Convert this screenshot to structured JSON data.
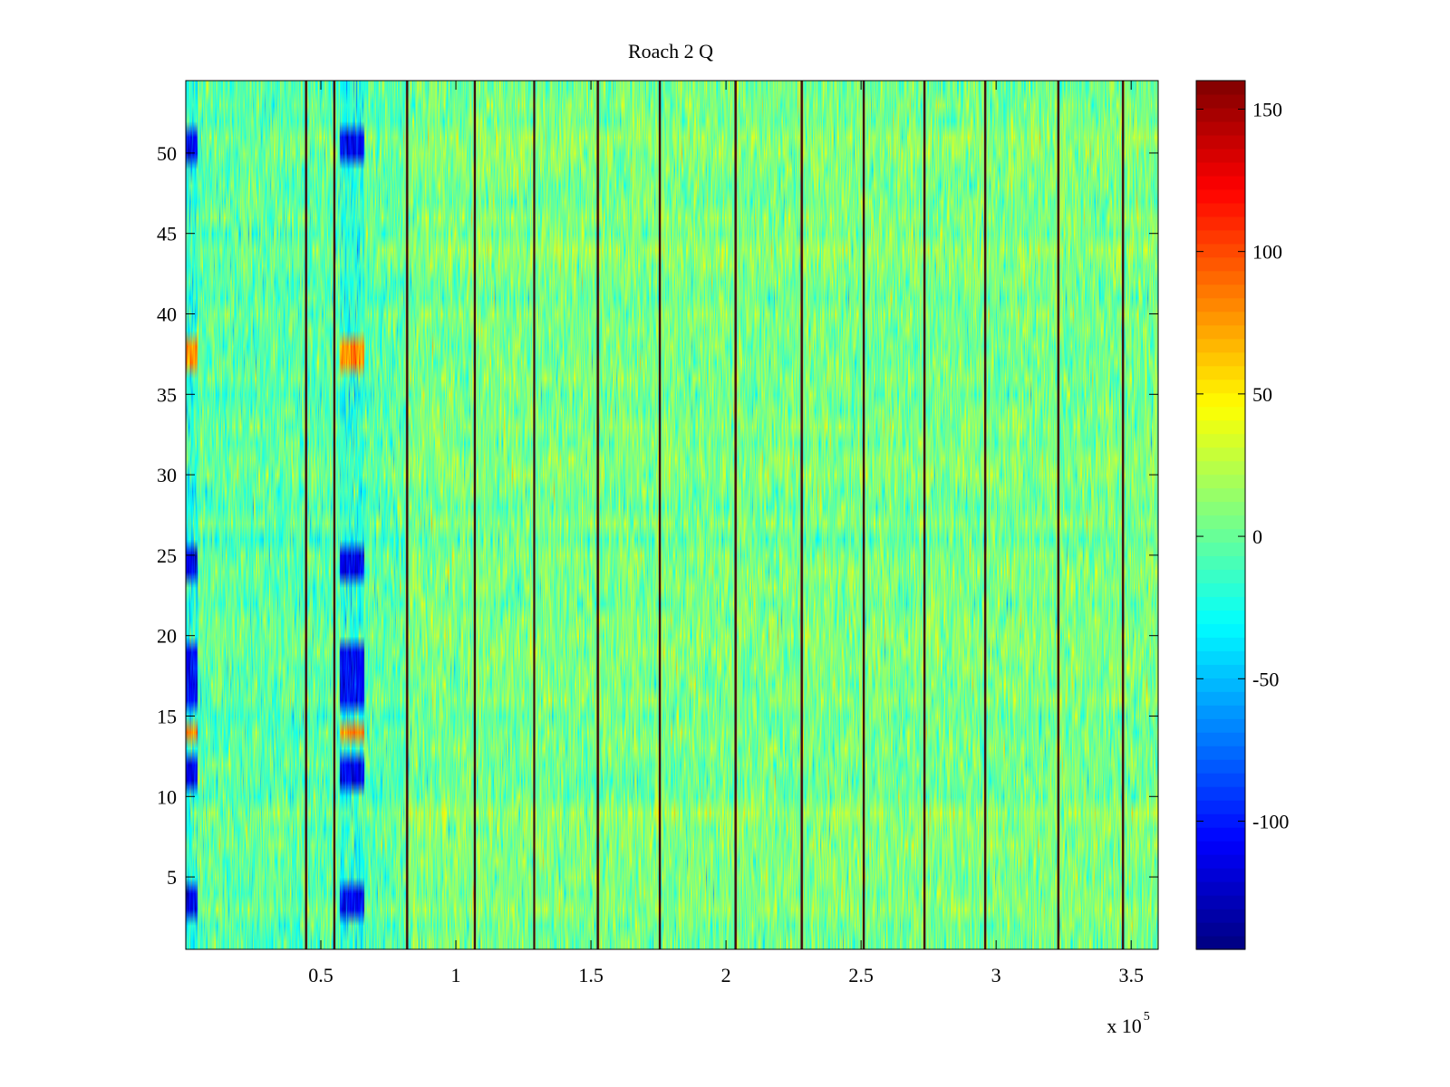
{
  "chart_data": {
    "type": "heatmap",
    "title": "Roach 2 Q",
    "xlabel": "",
    "ylabel": "",
    "x_exponent_label": "x 10",
    "x_exponent_power": "5",
    "xlim": [
      0,
      360000
    ],
    "ylim": [
      0.5,
      54.5
    ],
    "x_ticks": [
      {
        "value": 50000,
        "label": "0.5"
      },
      {
        "value": 100000,
        "label": "1"
      },
      {
        "value": 150000,
        "label": "1.5"
      },
      {
        "value": 200000,
        "label": "2"
      },
      {
        "value": 250000,
        "label": "2.5"
      },
      {
        "value": 300000,
        "label": "3"
      },
      {
        "value": 350000,
        "label": "3.5"
      }
    ],
    "y_ticks": [
      {
        "value": 5,
        "label": "5"
      },
      {
        "value": 10,
        "label": "10"
      },
      {
        "value": 15,
        "label": "15"
      },
      {
        "value": 20,
        "label": "20"
      },
      {
        "value": 25,
        "label": "25"
      },
      {
        "value": 30,
        "label": "30"
      },
      {
        "value": 35,
        "label": "35"
      },
      {
        "value": 40,
        "label": "40"
      },
      {
        "value": 45,
        "label": "45"
      },
      {
        "value": 50,
        "label": "50"
      }
    ],
    "colorbar": {
      "colormap": "jet",
      "clim": [
        -145,
        160
      ],
      "ticks": [
        {
          "value": 150,
          "label": "150"
        },
        {
          "value": 100,
          "label": "100"
        },
        {
          "value": 50,
          "label": "50"
        },
        {
          "value": 0,
          "label": "0"
        },
        {
          "value": -50,
          "label": "-50"
        },
        {
          "value": -100,
          "label": "-100"
        }
      ]
    },
    "rows": 54,
    "vertical_lines_x": [
      44500,
      55000,
      82000,
      107000,
      129000,
      152500,
      175500,
      203500,
      228000,
      251000,
      273500,
      296000,
      323000,
      347000
    ],
    "strong_negative_rows": [
      3,
      4,
      11,
      12,
      16,
      17,
      18,
      19,
      24,
      25,
      50,
      51
    ],
    "strong_positive_rows": [
      14,
      37,
      38
    ],
    "anomaly_bands_x": [
      [
        0,
        4500
      ],
      [
        57000,
        66000
      ]
    ],
    "grid": false
  }
}
